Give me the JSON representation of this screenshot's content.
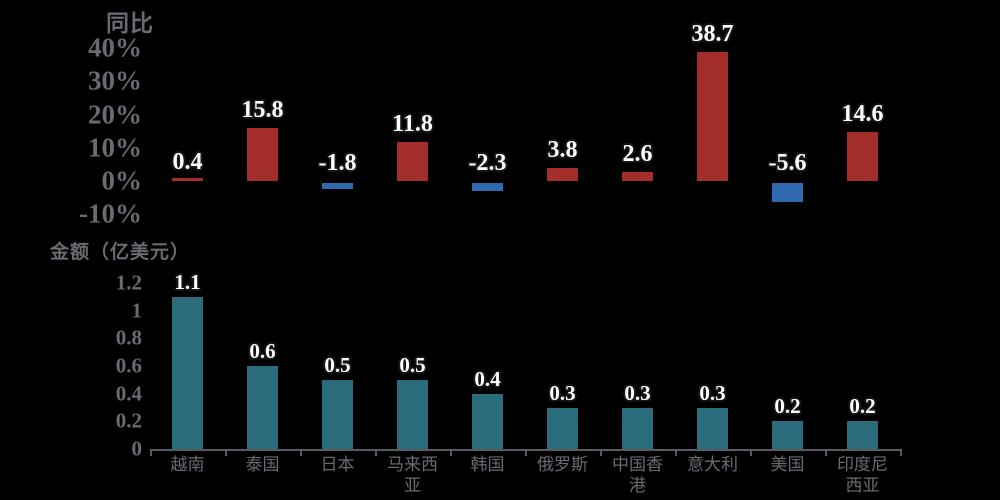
{
  "page": {
    "background_color": "#000000",
    "text_color": "#696a72",
    "axis_color": "#5a5b63"
  },
  "chart_data": [
    {
      "type": "bar",
      "title": "同比",
      "xlabel": "",
      "ylabel": "同比",
      "categories": [
        "越南",
        "泰国",
        "日本",
        "马来西亚",
        "韩国",
        "俄罗斯",
        "中国香港",
        "意大利",
        "美国",
        "印度尼西亚"
      ],
      "values": [
        0.4,
        15.8,
        -1.8,
        11.8,
        -2.3,
        3.8,
        2.6,
        38.7,
        -5.6,
        14.6
      ],
      "value_labels": [
        "0.4",
        "15.8",
        "-1.8",
        "11.8",
        "-2.3",
        "3.8",
        "2.6",
        "38.7",
        "-5.6",
        "14.6"
      ],
      "ytick_values": [
        40,
        30,
        20,
        10,
        0,
        -10
      ],
      "ytick_labels": [
        "40%",
        "30%",
        "20%",
        "10%",
        "0%",
        "-10%"
      ],
      "ylim": [
        -12,
        44
      ],
      "grid": false,
      "legend": "none",
      "positive_color": "#a32d28",
      "negative_color": "#2f6ab0",
      "label_color": "#ffffff",
      "x_axis_visible": false
    },
    {
      "type": "bar",
      "title": "金额（亿美元）",
      "xlabel": "",
      "ylabel": "金额（亿美元）",
      "categories": [
        "越南",
        "泰国",
        "日本",
        "马来西亚",
        "韩国",
        "俄罗斯",
        "中国香港",
        "意大利",
        "美国",
        "印度尼西亚"
      ],
      "category_lines": [
        [
          "越南"
        ],
        [
          "泰国"
        ],
        [
          "日本"
        ],
        [
          "马来西",
          "亚"
        ],
        [
          "韩国"
        ],
        [
          "俄罗斯"
        ],
        [
          "中国香",
          "港"
        ],
        [
          "意大利"
        ],
        [
          "美国"
        ],
        [
          "印度尼",
          "西亚"
        ]
      ],
      "values": [
        1.1,
        0.6,
        0.5,
        0.5,
        0.4,
        0.3,
        0.3,
        0.3,
        0.2,
        0.2
      ],
      "value_labels": [
        "1.1",
        "0.6",
        "0.5",
        "0.5",
        "0.4",
        "0.3",
        "0.3",
        "0.3",
        "0.2",
        "0.2"
      ],
      "ytick_values": [
        1.2,
        1,
        0.8,
        0.6,
        0.4,
        0.2,
        0
      ],
      "ytick_labels": [
        "1.2",
        "1",
        "0.8",
        "0.6",
        "0.4",
        "0.2",
        "0"
      ],
      "ylim": [
        0,
        1.3
      ],
      "grid": false,
      "legend": "none",
      "bar_color": "#2a6c7c",
      "label_color": "#ffffff",
      "x_axis_visible": true
    }
  ],
  "category_slugs": [
    "vietnam",
    "thailand",
    "japan",
    "malaysia",
    "south-korea",
    "russia",
    "hong-kong-china",
    "italy",
    "usa",
    "indonesia"
  ]
}
